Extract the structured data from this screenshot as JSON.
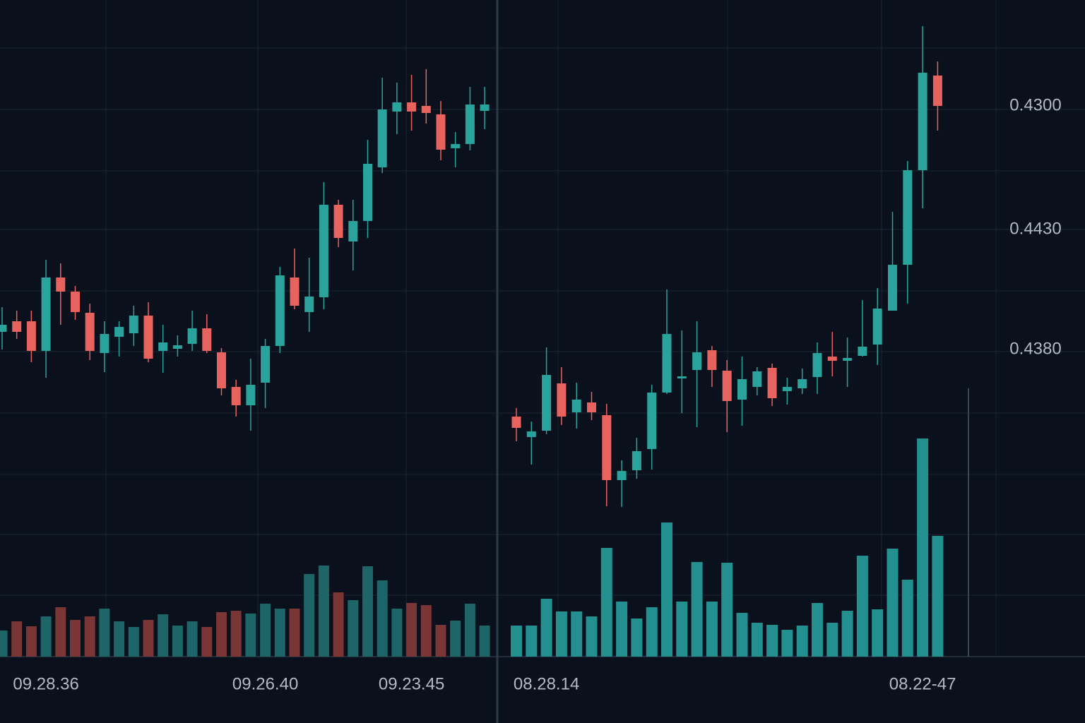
{
  "chart_data": [
    {
      "type": "candlestick",
      "categories": [
        null,
        null,
        null,
        "09.28.36",
        null,
        null,
        null,
        null,
        null,
        null,
        null,
        null,
        null,
        null,
        null,
        null,
        null,
        null,
        "09.26.40",
        null,
        null,
        null,
        null,
        null,
        null,
        null,
        null,
        null,
        "09.23.45",
        null,
        null,
        null,
        null,
        null
      ],
      "open": [
        46.0,
        47.5,
        47.5,
        43.3,
        53.7,
        51.7,
        48.7,
        43.0,
        45.3,
        45.8,
        48.3,
        43.3,
        43.6,
        44.3,
        46.5,
        43.1,
        38.2,
        35.6,
        38.8,
        44.0,
        53.7,
        48.8,
        50.9,
        64.0,
        58.8,
        61.7,
        69.3,
        77.2,
        78.5,
        78.0,
        76.8,
        72.0,
        72.6,
        77.3
      ],
      "high": [
        49.5,
        49.0,
        49.0,
        56.2,
        55.7,
        52.5,
        50.0,
        47.5,
        47.5,
        49.7,
        50.2,
        47.0,
        45.5,
        49.0,
        48.5,
        43.7,
        39.2,
        42.2,
        45.0,
        55.2,
        57.8,
        56.5,
        67.2,
        64.7,
        64.7,
        73.2,
        82.0,
        81.3,
        82.4,
        83.2,
        78.7,
        74.3,
        80.7,
        80.7
      ],
      "low": [
        43.5,
        45.0,
        41.7,
        39.5,
        47.0,
        47.7,
        42.0,
        40.3,
        42.5,
        44.0,
        41.7,
        40.2,
        42.5,
        43.3,
        43.0,
        37.0,
        34.0,
        32.0,
        35.2,
        43.0,
        49.2,
        46.0,
        49.2,
        58.0,
        54.7,
        59.3,
        68.5,
        74.0,
        74.5,
        75.5,
        70.3,
        69.3,
        71.7,
        74.7
      ],
      "close": [
        47.0,
        46.0,
        43.3,
        53.7,
        51.7,
        48.8,
        43.3,
        45.7,
        46.7,
        48.3,
        42.2,
        44.5,
        44.1,
        46.5,
        43.3,
        38.0,
        35.6,
        38.5,
        44.0,
        54.0,
        49.7,
        51.0,
        64.0,
        59.3,
        61.7,
        69.8,
        77.5,
        78.5,
        77.2,
        77.0,
        71.8,
        72.6,
        78.2,
        78.2
      ],
      "volume": [
        3.7,
        5.0,
        4.3,
        5.7,
        7.0,
        5.2,
        5.7,
        6.8,
        5.0,
        4.2,
        5.2,
        6.0,
        4.4,
        5.0,
        4.2,
        6.3,
        6.5,
        6.1,
        7.5,
        6.8,
        6.8,
        11.7,
        12.9,
        9.1,
        8.0,
        12.8,
        10.8,
        6.8,
        7.6,
        7.3,
        4.5,
        5.1,
        7.5,
        4.4
      ],
      "up_color": "#2aa39c",
      "down_color": "#e8625e",
      "volume_up_color": "#1d6566",
      "volume_down_color": "#7a3535",
      "ylim": [
        0,
        93
      ],
      "volume_ylim": [
        0,
        93
      ]
    },
    {
      "type": "candlestick",
      "categories": [
        null,
        null,
        "08.28.14",
        null,
        null,
        null,
        null,
        null,
        null,
        null,
        null,
        null,
        null,
        null,
        null,
        null,
        null,
        null,
        null,
        null,
        null,
        null,
        null,
        null,
        null,
        null,
        null,
        "08.22-47",
        null
      ],
      "open": [
        34.0,
        31.1,
        32.0,
        38.7,
        34.6,
        36.0,
        34.2,
        25.0,
        26.4,
        29.4,
        37.4,
        39.4,
        40.6,
        43.4,
        40.5,
        36.4,
        38.2,
        40.9,
        37.6,
        38.0,
        39.6,
        42.5,
        41.9,
        42.6,
        44.2,
        49.0,
        55.5,
        68.9,
        82.3
      ],
      "high": [
        35.2,
        33.3,
        43.8,
        41.0,
        38.8,
        37.5,
        35.8,
        27.8,
        31.0,
        38.5,
        52.0,
        46.2,
        47.5,
        44.0,
        42.0,
        42.5,
        41.0,
        41.5,
        39.5,
        40.8,
        44.5,
        46.0,
        45.2,
        50.5,
        52.2,
        63.0,
        70.2,
        89.3,
        84.3
      ],
      "low": [
        30.5,
        27.2,
        31.5,
        32.8,
        32.3,
        33.5,
        21.3,
        21.2,
        25.2,
        26.5,
        37.2,
        34.5,
        32.5,
        38.2,
        31.8,
        32.7,
        37.0,
        35.5,
        35.7,
        37.2,
        37.2,
        39.7,
        38.2,
        42.5,
        41.3,
        49.0,
        50.0,
        63.5,
        74.5
      ],
      "close": [
        32.4,
        31.9,
        39.9,
        34.0,
        36.4,
        34.6,
        25.0,
        26.3,
        29.1,
        37.4,
        45.7,
        39.7,
        43.1,
        40.6,
        36.2,
        39.3,
        40.4,
        36.6,
        38.2,
        39.3,
        43.0,
        41.9,
        42.3,
        43.9,
        49.3,
        55.5,
        68.9,
        82.7,
        78.0
      ],
      "volume": [
        4.4,
        4.4,
        8.2,
        6.4,
        6.4,
        5.7,
        15.4,
        7.8,
        5.4,
        7.0,
        19.0,
        7.8,
        13.4,
        7.8,
        13.3,
        6.2,
        4.8,
        4.5,
        3.8,
        4.4,
        7.6,
        4.8,
        6.5,
        14.3,
        6.7,
        15.3,
        10.9,
        30.9,
        17.1
      ],
      "up_color": "#2aa39c",
      "down_color": "#e8625e",
      "volume_up_color": "#23908f",
      "volume_down_color": "#23908f",
      "ylim": [
        0,
        93
      ],
      "volume_ylim": [
        0,
        93
      ],
      "price_labels": [
        "0.4300",
        "0.4430",
        "0.4380"
      ]
    }
  ]
}
